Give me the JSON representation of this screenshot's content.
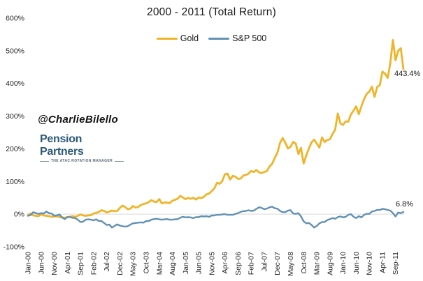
{
  "title": "2000 - 2011 (Total Return)",
  "watermark": {
    "handle": "@CharlieBilello",
    "brand": "Pension Partners",
    "tagline": "THE ATAC ROTATION MANAGER"
  },
  "colors": {
    "gold": "#F0B428",
    "sp500": "#6191B4",
    "gridline": "#D9D9D9",
    "brand_blue": "#2B5A78",
    "text": "#262626"
  },
  "chart_data": {
    "type": "line",
    "title": "2000 - 2011 (Total Return)",
    "legend_position": "top",
    "grid": "single horizontal gridline at 0%",
    "ylim": [
      -100,
      600
    ],
    "y_tick_values": [
      600,
      500,
      400,
      300,
      200,
      100,
      0,
      -100
    ],
    "y_tick_suffix": "%",
    "x_unit": "month",
    "x_range": [
      "Jan-00",
      "Dec-11"
    ],
    "x_tick_labels": [
      "Jan-00",
      "Jun-00",
      "Nov-00",
      "Apr-01",
      "Sep-01",
      "Feb-02",
      "Jul-02",
      "Dec-02",
      "May-03",
      "Oct-03",
      "Mar-04",
      "Aug-04",
      "Jan-05",
      "Jun-05",
      "Nov-05",
      "Apr-06",
      "Sep-06",
      "Feb-07",
      "Jul-07",
      "Dec-07",
      "May-08",
      "Oct-08",
      "Mar-09",
      "Aug-09",
      "Jan-10",
      "Jun-10",
      "Nov-10",
      "Apr-11",
      "Sep-11"
    ],
    "x_tick_month_indices": [
      0,
      5,
      10,
      15,
      20,
      25,
      30,
      35,
      40,
      45,
      50,
      55,
      60,
      65,
      70,
      75,
      80,
      85,
      90,
      95,
      100,
      105,
      110,
      115,
      120,
      125,
      130,
      135,
      140
    ],
    "series": [
      {
        "name": "Gold",
        "color": "#F0B428",
        "end_label": "443.4%",
        "values": [
          -2,
          2,
          -4,
          -5,
          -6,
          -1,
          -4,
          -5,
          -6,
          -8,
          -7,
          -6,
          -9,
          -10,
          -11,
          -9,
          -8,
          -6,
          -8,
          -5,
          -1,
          -4,
          -5,
          -4,
          -3,
          2,
          4,
          7,
          12,
          10,
          5,
          8,
          11,
          9,
          10,
          19,
          26,
          22,
          15,
          17,
          25,
          20,
          22,
          28,
          31,
          33,
          37,
          43,
          38,
          37,
          46,
          33,
          36,
          35,
          34,
          41,
          44,
          47,
          56,
          51,
          46,
          50,
          47,
          50,
          45,
          51,
          49,
          53,
          61,
          63,
          71,
          79,
          96,
          93,
          101,
          122,
          124,
          106,
          117,
          115,
          108,
          109,
          118,
          120,
          124,
          132,
          129,
          135,
          128,
          126,
          129,
          132,
          146,
          154,
          172,
          188,
          218,
          233,
          219,
          201,
          206,
          221,
          216,
          184,
          203,
          155,
          180,
          201,
          220,
          228,
          216,
          204,
          235,
          221,
          227,
          229,
          245,
          259,
          308,
          278,
          273,
          284,
          283,
          305,
          317,
          330,
          306,
          330,
          352,
          368,
          375,
          390,
          359,
          389,
          395,
          436,
          430,
          417,
          462,
          533,
          471,
          500,
          508,
          443.4
        ]
      },
      {
        "name": "S&P 500",
        "color": "#6191B4",
        "end_label": "6.8%",
        "values": [
          -5,
          -3,
          6,
          3,
          1,
          3,
          2,
          8,
          3,
          2,
          -5,
          -4,
          -1,
          -10,
          -15,
          -9,
          -9,
          -11,
          -12,
          -17,
          -24,
          -23,
          -17,
          -16,
          -17,
          -19,
          -16,
          -21,
          -21,
          -27,
          -33,
          -32,
          -41,
          -36,
          -31,
          -35,
          -37,
          -38,
          -37,
          -32,
          -28,
          -27,
          -26,
          -25,
          -26,
          -21,
          -21,
          -17,
          -15,
          -14,
          -16,
          -17,
          -16,
          -15,
          -17,
          -17,
          -16,
          -15,
          -11,
          -8,
          -10,
          -9,
          -10,
          -12,
          -9,
          -9,
          -6,
          -7,
          -6,
          -8,
          -4,
          -4,
          -2,
          -2,
          -1,
          0,
          -2,
          -2,
          -2,
          1,
          3,
          7,
          9,
          10,
          12,
          10,
          11,
          16,
          21,
          19,
          15,
          17,
          21,
          23,
          18,
          17,
          10,
          6,
          6,
          11,
          12,
          2,
          1,
          3,
          -7,
          -22,
          -28,
          -27,
          -33,
          -41,
          -36,
          -28,
          -24,
          -24,
          -18,
          -15,
          -12,
          -14,
          -9,
          -7,
          -10,
          -8,
          -2,
          0,
          -8,
          -12,
          -6,
          -10,
          -2,
          1,
          1,
          8,
          10,
          13,
          13,
          16,
          15,
          13,
          11,
          3,
          -7,
          5,
          3,
          6.8
        ]
      }
    ]
  }
}
